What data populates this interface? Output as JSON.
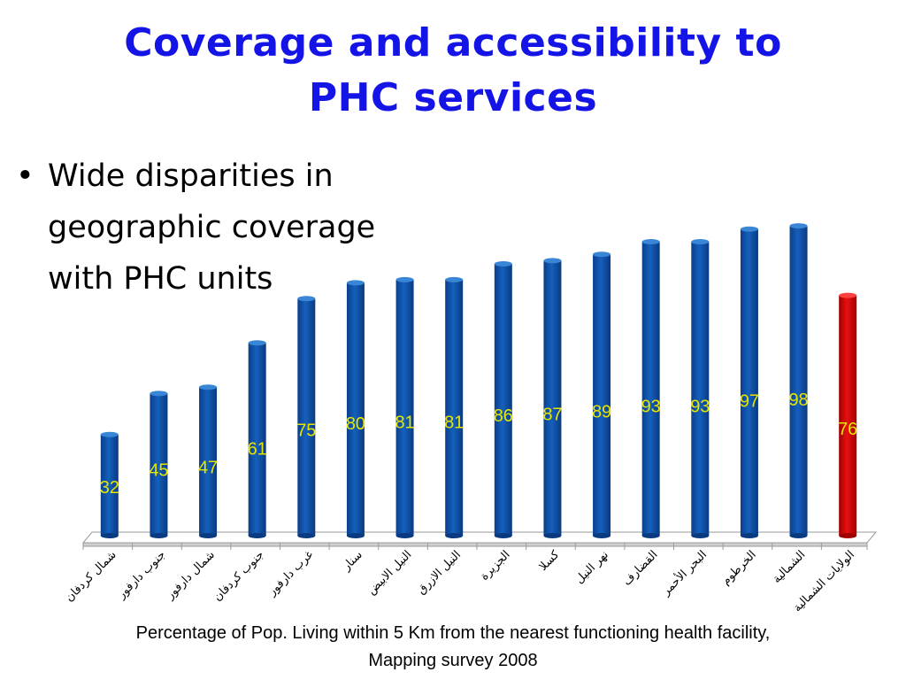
{
  "slide": {
    "title_line1": "Coverage and accessibility to",
    "title_line2": "PHC services",
    "bullet": "Wide disparities in geographic coverage with PHC units",
    "caption_line1": "Percentage of Pop. Living within 5 Km from the nearest functioning health facility,",
    "caption_line2": "Mapping survey 2008"
  },
  "chart_data": {
    "type": "bar",
    "categories": [
      "شمال كردفان",
      "جنوب دارفور",
      "شمال دارفور",
      "جنوب كردفان",
      "غرب دارفور",
      "سنار",
      "النيل الابيض",
      "النيل الازرق",
      "الجزيرة",
      "كسلا",
      "نهر النيل",
      "القضارف",
      "البحر الأحمر",
      "الخرطوم",
      "الشمالية",
      "الولايات الشمالية"
    ],
    "values": [
      32,
      45,
      47,
      61,
      75,
      80,
      81,
      81,
      86,
      87,
      89,
      93,
      93,
      97,
      98,
      76
    ],
    "highlight_index": 15,
    "ylim": [
      0,
      100
    ],
    "grid": false,
    "colors": {
      "bar": "#1560bd",
      "highlight": "#e81010",
      "label": "#e6e600"
    }
  }
}
